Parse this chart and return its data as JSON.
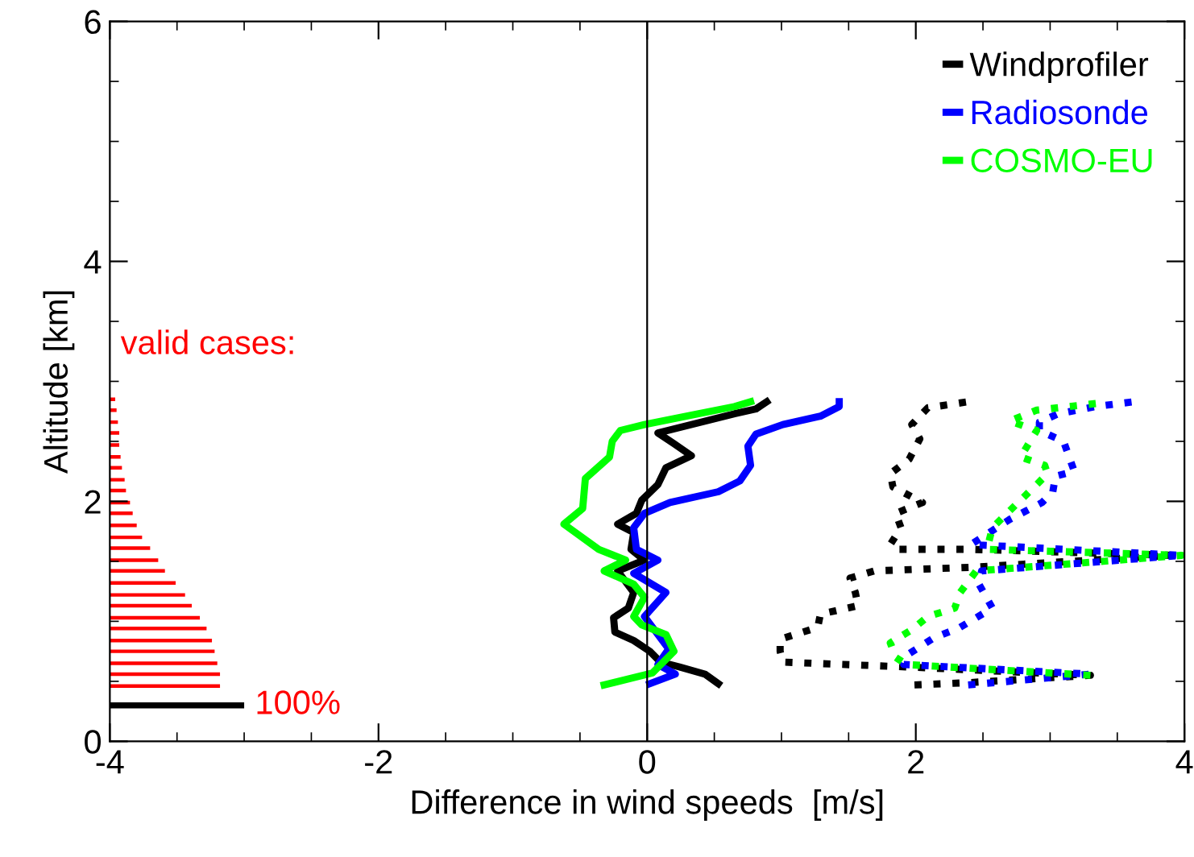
{
  "chart_data": {
    "type": "line",
    "orientation": "horizontal",
    "xlabel": "Difference in wind speeds  [m/s]",
    "ylabel": "Altitude [km]",
    "xlim": [
      -4,
      4
    ],
    "ylim": [
      0,
      6
    ],
    "xticks": [
      -4,
      {
        "value": -3.5,
        "label": null
      },
      {
        "value": -3,
        "label": null
      },
      {
        "value": -2.5,
        "label": null
      },
      -2,
      {
        "value": -1.5,
        "label": null
      },
      {
        "value": -1,
        "label": null
      },
      {
        "value": -0.5,
        "label": null
      },
      0,
      {
        "value": 0.5,
        "label": null
      },
      {
        "value": 1,
        "label": null
      },
      {
        "value": 1.5,
        "label": null
      },
      2,
      {
        "value": 2.5,
        "label": null
      },
      {
        "value": 3,
        "label": null
      },
      {
        "value": 3.5,
        "label": null
      },
      4
    ],
    "yticks": [
      0,
      {
        "value": 0.5,
        "label": null
      },
      {
        "value": 1,
        "label": null
      },
      {
        "value": 1.5,
        "label": null
      },
      2,
      {
        "value": 2.5,
        "label": null
      },
      {
        "value": 3,
        "label": null
      },
      {
        "value": 3.5,
        "label": null
      },
      4,
      {
        "value": 4.5,
        "label": null
      },
      {
        "value": 5,
        "label": null
      },
      {
        "value": 5.5,
        "label": null
      },
      6
    ],
    "legend": "top right",
    "ref_lines": [
      {
        "axis": "x",
        "value": 0,
        "color": "#000000"
      }
    ],
    "annotations": [
      "valid cases:",
      {
        "text": "100%",
        "x": -3,
        "y": 0.3
      }
    ],
    "series": [
      {
        "name": "Windprofiler",
        "line_style": "solid",
        "color": "#000000",
        "x": [
          0.48,
          0.56,
          0.62,
          0.66,
          0.75,
          0.84,
          0.91,
          1.03,
          1.11,
          1.24,
          1.42,
          1.51,
          1.6,
          1.74,
          1.81,
          1.9,
          2.01,
          2.14,
          2.28,
          2.38,
          2.48,
          2.57,
          2.73,
          2.77,
          2.83
        ],
        "values": [
          0.53,
          0.43,
          0.24,
          0.1,
          0.02,
          -0.1,
          -0.24,
          -0.25,
          -0.14,
          -0.1,
          -0.22,
          -0.02,
          -0.12,
          -0.1,
          -0.22,
          -0.08,
          -0.04,
          0.08,
          0.14,
          0.33,
          0.2,
          0.08,
          0.65,
          0.81,
          0.89
        ]
      },
      {
        "name": "Radiosonde",
        "line_style": "solid",
        "color": "#0000ff",
        "x": [
          0.48,
          0.56,
          0.64,
          0.77,
          1.04,
          1.24,
          1.4,
          1.51,
          1.6,
          1.78,
          1.9,
          1.99,
          2.08,
          2.17,
          2.3,
          2.46,
          2.56,
          2.64,
          2.71,
          2.79,
          2.83
        ],
        "values": [
          0.02,
          0.21,
          0.08,
          0.16,
          -0.02,
          0.14,
          -0.1,
          0.08,
          -0.08,
          -0.1,
          -0.02,
          0.17,
          0.53,
          0.69,
          0.77,
          0.75,
          0.81,
          1.01,
          1.29,
          1.43,
          1.43
        ]
      },
      {
        "name": "COSMO-EU",
        "line_style": "solid",
        "color": "#00ff00",
        "x": [
          0.47,
          0.57,
          0.75,
          0.89,
          0.97,
          1.04,
          1.2,
          1.31,
          1.42,
          1.51,
          1.6,
          1.81,
          1.94,
          2.19,
          2.37,
          2.5,
          2.59,
          2.64,
          2.79,
          2.83
        ],
        "values": [
          -0.32,
          0.04,
          0.2,
          0.14,
          -0.04,
          -0.1,
          -0.02,
          -0.1,
          -0.32,
          -0.16,
          -0.36,
          -0.62,
          -0.48,
          -0.46,
          -0.28,
          -0.26,
          -0.2,
          -0.02,
          0.65,
          0.77
        ]
      },
      {
        "line_style": "dotted",
        "color": "#000000",
        "x": [
          0.47,
          0.49,
          0.55,
          0.62,
          0.66,
          0.75,
          0.85,
          0.95,
          1.06,
          1.13,
          1.24,
          1.36,
          1.42,
          1.45,
          1.55,
          1.6,
          1.6,
          1.64,
          1.78,
          1.9,
          1.99,
          2.12,
          2.23,
          2.35,
          2.52,
          2.64,
          2.78,
          2.83
        ],
        "values": [
          1.99,
          2.41,
          3.3,
          1.93,
          1.01,
          0.99,
          0.99,
          1.27,
          1.29,
          1.57,
          1.55,
          1.51,
          1.69,
          2.41,
          3.9,
          2.41,
          1.87,
          1.81,
          1.89,
          1.85,
          2.05,
          1.83,
          1.81,
          1.95,
          2.03,
          1.97,
          2.09,
          2.39
        ]
      },
      {
        "line_style": "dotted",
        "color": "#0000ff",
        "x": [
          0.47,
          0.56,
          0.64,
          0.73,
          0.86,
          0.95,
          1.11,
          1.31,
          1.42,
          1.55,
          1.64,
          1.85,
          1.99,
          2.08,
          2.21,
          2.25,
          2.5,
          2.59,
          2.66,
          2.73,
          2.79,
          2.83
        ],
        "values": [
          2.39,
          3.3,
          1.91,
          1.95,
          2.13,
          2.33,
          2.57,
          2.47,
          2.49,
          3.98,
          2.41,
          2.7,
          2.94,
          3.02,
          3.04,
          3.18,
          3.1,
          2.92,
          2.92,
          3.06,
          3.34,
          3.62
        ]
      },
      {
        "line_style": "dotted",
        "color": "#00ff00",
        "x": [
          0.55,
          0.64,
          0.7,
          0.82,
          0.93,
          1.04,
          1.11,
          1.24,
          1.42,
          1.55,
          1.6,
          1.78,
          2.01,
          2.14,
          2.23,
          2.3,
          2.37,
          2.59,
          2.67,
          2.76,
          2.82
        ],
        "values": [
          3.3,
          1.93,
          1.85,
          1.81,
          1.97,
          2.09,
          2.29,
          2.33,
          2.45,
          3.98,
          2.53,
          2.57,
          2.78,
          2.9,
          2.98,
          2.96,
          2.78,
          2.9,
          2.7,
          2.9,
          3.38
        ]
      },
      {
        "type": "bar",
        "color": "#ff0000",
        "x": [
          0.46,
          0.56,
          0.65,
          0.75,
          0.84,
          0.94,
          1.03,
          1.13,
          1.22,
          1.32,
          1.42,
          1.51,
          1.61,
          1.7,
          1.8,
          1.9,
          1.99,
          2.09,
          2.18,
          2.28,
          2.37,
          2.47,
          2.57,
          2.66,
          2.76,
          2.85
        ],
        "base": [
          -4,
          -4,
          -4,
          -4,
          -4,
          -4,
          -4,
          -4,
          -4,
          -4,
          -4,
          -4,
          -4,
          -4,
          -4,
          -4,
          -4,
          -4,
          -4,
          -4,
          -4,
          -4,
          -4,
          -4,
          -4,
          -4
        ],
        "values": [
          0.82,
          0.82,
          0.8,
          0.78,
          0.76,
          0.72,
          0.67,
          0.61,
          0.56,
          0.49,
          0.41,
          0.36,
          0.3,
          0.24,
          0.2,
          0.17,
          0.15,
          0.12,
          0.11,
          0.09,
          0.08,
          0.07,
          0.07,
          0.06,
          0.05,
          0.04
        ]
      },
      {
        "type": "bar",
        "color": "#000000",
        "x": [
          0.3
        ],
        "base": [
          -4
        ],
        "values": [
          1
        ]
      }
    ]
  }
}
